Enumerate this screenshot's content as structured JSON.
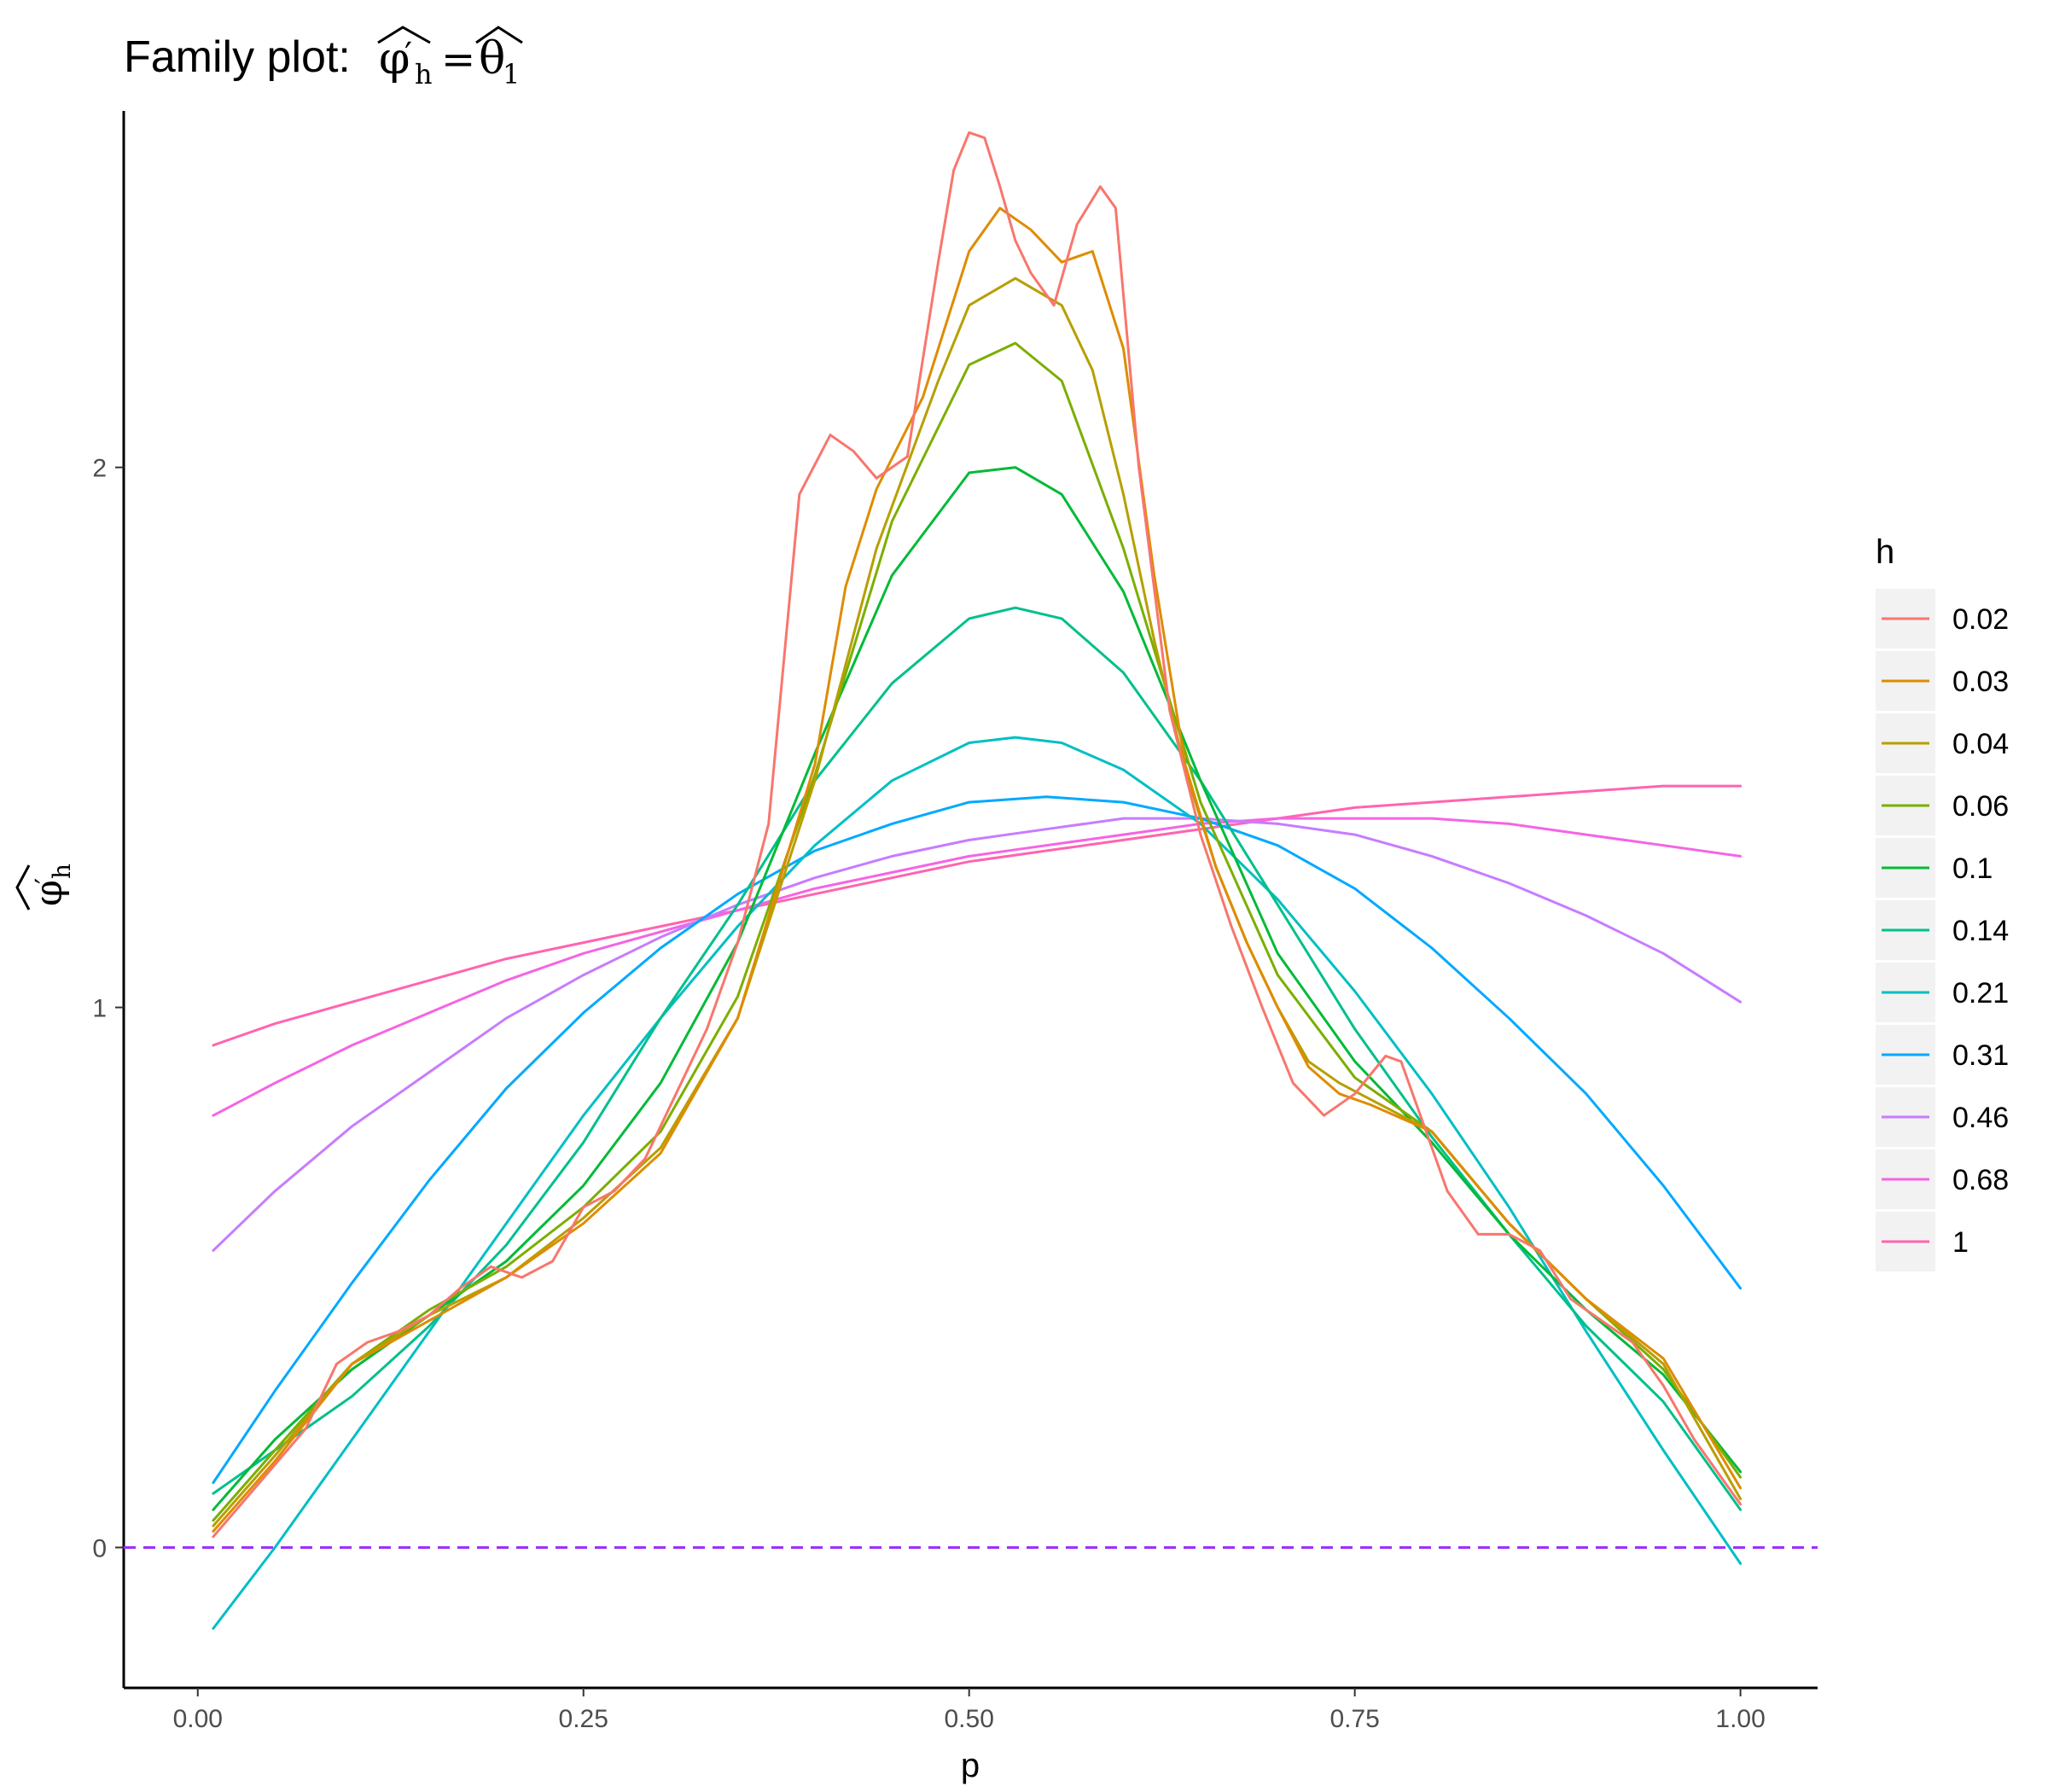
{
  "chart_data": {
    "type": "line",
    "title": {
      "prefix": "Family plot:",
      "phi": "φ",
      "prime": "′",
      "subscript_h": "h",
      "equals": "=",
      "theta": "θ",
      "subscript_1": "1"
    },
    "xlabel": "p",
    "ylabel": {
      "phi": "φ",
      "prime": "′",
      "subscript": "h"
    },
    "xlim": [
      -0.048,
      1.05
    ],
    "ylim": [
      -0.26,
      2.66
    ],
    "x_ticks": [
      0.0,
      0.25,
      0.5,
      0.75,
      1.0
    ],
    "x_tick_labels": [
      "0.00",
      "0.25",
      "0.50",
      "0.75",
      "1.00"
    ],
    "y_ticks": [
      0,
      1,
      2
    ],
    "y_tick_labels": [
      "0",
      "1",
      "2"
    ],
    "reference_line": {
      "y": 0,
      "style": "dashed",
      "color": "#9b30ff"
    },
    "legend": {
      "title": "h",
      "position": "right"
    },
    "series": [
      {
        "name": "0.02",
        "color": "#F8766D",
        "x": [
          0.01,
          0.04,
          0.07,
          0.09,
          0.11,
          0.13,
          0.15,
          0.17,
          0.19,
          0.21,
          0.23,
          0.25,
          0.27,
          0.29,
          0.31,
          0.33,
          0.35,
          0.37,
          0.39,
          0.41,
          0.425,
          0.44,
          0.46,
          0.48,
          0.49,
          0.5,
          0.51,
          0.52,
          0.53,
          0.54,
          0.555,
          0.57,
          0.585,
          0.595,
          0.61,
          0.63,
          0.65,
          0.67,
          0.69,
          0.71,
          0.73,
          0.75,
          0.77,
          0.78,
          0.79,
          0.81,
          0.83,
          0.85,
          0.87,
          0.89,
          0.91,
          0.93,
          0.95,
          0.97,
          1.0
        ],
        "y": [
          0.02,
          0.12,
          0.22,
          0.34,
          0.38,
          0.4,
          0.43,
          0.48,
          0.52,
          0.5,
          0.53,
          0.63,
          0.66,
          0.72,
          0.84,
          0.96,
          1.12,
          1.34,
          1.95,
          2.06,
          2.03,
          1.98,
          2.02,
          2.38,
          2.55,
          2.62,
          2.61,
          2.52,
          2.42,
          2.36,
          2.3,
          2.45,
          2.52,
          2.48,
          2.0,
          1.55,
          1.32,
          1.15,
          1.0,
          0.86,
          0.8,
          0.84,
          0.91,
          0.9,
          0.82,
          0.66,
          0.58,
          0.58,
          0.55,
          0.46,
          0.42,
          0.38,
          0.3,
          0.2,
          0.08
        ]
      },
      {
        "name": "0.03",
        "color": "#DE8C00",
        "x": [
          0.01,
          0.05,
          0.1,
          0.15,
          0.2,
          0.25,
          0.3,
          0.35,
          0.4,
          0.42,
          0.44,
          0.47,
          0.5,
          0.52,
          0.54,
          0.56,
          0.58,
          0.6,
          0.62,
          0.64,
          0.66,
          0.68,
          0.7,
          0.72,
          0.74,
          0.76,
          0.8,
          0.85,
          0.9,
          0.95,
          1.0
        ],
        "y": [
          0.03,
          0.16,
          0.34,
          0.42,
          0.5,
          0.6,
          0.73,
          0.98,
          1.45,
          1.78,
          1.96,
          2.13,
          2.4,
          2.48,
          2.44,
          2.38,
          2.4,
          2.22,
          1.8,
          1.45,
          1.26,
          1.12,
          1.0,
          0.89,
          0.84,
          0.82,
          0.77,
          0.6,
          0.46,
          0.35,
          0.11
        ]
      },
      {
        "name": "0.04",
        "color": "#B79F00",
        "x": [
          0.01,
          0.05,
          0.1,
          0.15,
          0.2,
          0.25,
          0.3,
          0.35,
          0.4,
          0.44,
          0.48,
          0.5,
          0.53,
          0.56,
          0.58,
          0.6,
          0.62,
          0.64,
          0.66,
          0.68,
          0.7,
          0.72,
          0.74,
          0.76,
          0.8,
          0.85,
          0.9,
          0.95,
          1.0
        ],
        "y": [
          0.04,
          0.17,
          0.34,
          0.43,
          0.5,
          0.61,
          0.74,
          0.98,
          1.42,
          1.85,
          2.16,
          2.3,
          2.35,
          2.3,
          2.18,
          1.95,
          1.68,
          1.44,
          1.26,
          1.12,
          1.0,
          0.9,
          0.86,
          0.83,
          0.77,
          0.6,
          0.46,
          0.34,
          0.09
        ]
      },
      {
        "name": "0.06",
        "color": "#7CAE00",
        "x": [
          0.01,
          0.05,
          0.1,
          0.15,
          0.2,
          0.25,
          0.3,
          0.35,
          0.4,
          0.45,
          0.5,
          0.53,
          0.56,
          0.6,
          0.65,
          0.7,
          0.75,
          0.8,
          0.85,
          0.9,
          0.95,
          1.0
        ],
        "y": [
          0.05,
          0.18,
          0.34,
          0.44,
          0.52,
          0.63,
          0.77,
          1.02,
          1.43,
          1.9,
          2.19,
          2.23,
          2.16,
          1.85,
          1.38,
          1.06,
          0.87,
          0.77,
          0.6,
          0.46,
          0.33,
          0.13
        ]
      },
      {
        "name": "0.1",
        "color": "#00BA38",
        "x": [
          0.01,
          0.05,
          0.1,
          0.15,
          0.2,
          0.25,
          0.3,
          0.35,
          0.4,
          0.45,
          0.5,
          0.53,
          0.56,
          0.6,
          0.65,
          0.7,
          0.75,
          0.8,
          0.85,
          0.9,
          0.95,
          1.0
        ],
        "y": [
          0.07,
          0.2,
          0.33,
          0.43,
          0.53,
          0.67,
          0.86,
          1.12,
          1.47,
          1.8,
          1.99,
          2.0,
          1.95,
          1.77,
          1.42,
          1.1,
          0.9,
          0.75,
          0.58,
          0.44,
          0.32,
          0.14
        ]
      },
      {
        "name": "0.14",
        "color": "#00C08B",
        "x": [
          0.01,
          0.05,
          0.1,
          0.15,
          0.2,
          0.25,
          0.3,
          0.35,
          0.4,
          0.45,
          0.5,
          0.53,
          0.56,
          0.6,
          0.65,
          0.7,
          0.75,
          0.8,
          0.85,
          0.9,
          0.95,
          1.0
        ],
        "y": [
          0.1,
          0.18,
          0.28,
          0.41,
          0.56,
          0.75,
          0.98,
          1.19,
          1.42,
          1.6,
          1.72,
          1.74,
          1.72,
          1.62,
          1.42,
          1.19,
          0.96,
          0.76,
          0.58,
          0.41,
          0.27,
          0.07
        ]
      },
      {
        "name": "0.21",
        "color": "#00BFC4",
        "x": [
          0.01,
          0.05,
          0.1,
          0.15,
          0.2,
          0.25,
          0.3,
          0.35,
          0.4,
          0.45,
          0.5,
          0.53,
          0.56,
          0.6,
          0.65,
          0.7,
          0.75,
          0.8,
          0.85,
          0.9,
          0.95,
          1.0
        ],
        "y": [
          -0.15,
          0.0,
          0.2,
          0.4,
          0.6,
          0.8,
          0.98,
          1.15,
          1.3,
          1.42,
          1.49,
          1.5,
          1.49,
          1.44,
          1.34,
          1.2,
          1.03,
          0.84,
          0.63,
          0.4,
          0.18,
          -0.03
        ]
      },
      {
        "name": "0.31",
        "color": "#00A9FF",
        "x": [
          0.01,
          0.05,
          0.1,
          0.15,
          0.2,
          0.25,
          0.3,
          0.35,
          0.4,
          0.45,
          0.5,
          0.55,
          0.6,
          0.65,
          0.7,
          0.75,
          0.8,
          0.85,
          0.9,
          0.95,
          1.0
        ],
        "y": [
          0.12,
          0.29,
          0.49,
          0.68,
          0.85,
          0.99,
          1.11,
          1.21,
          1.29,
          1.34,
          1.38,
          1.39,
          1.38,
          1.35,
          1.3,
          1.22,
          1.11,
          0.98,
          0.84,
          0.67,
          0.48
        ]
      },
      {
        "name": "0.46",
        "color": "#C77CFF",
        "x": [
          0.01,
          0.05,
          0.1,
          0.15,
          0.2,
          0.25,
          0.3,
          0.35,
          0.4,
          0.45,
          0.5,
          0.55,
          0.6,
          0.65,
          0.7,
          0.75,
          0.8,
          0.85,
          0.9,
          0.95,
          1.0
        ],
        "y": [
          0.55,
          0.66,
          0.78,
          0.88,
          0.98,
          1.06,
          1.13,
          1.19,
          1.24,
          1.28,
          1.31,
          1.33,
          1.35,
          1.35,
          1.34,
          1.32,
          1.28,
          1.23,
          1.17,
          1.1,
          1.01
        ]
      },
      {
        "name": "0.68",
        "color": "#F564E3",
        "x": [
          0.01,
          0.05,
          0.1,
          0.15,
          0.2,
          0.25,
          0.3,
          0.35,
          0.4,
          0.45,
          0.5,
          0.55,
          0.6,
          0.65,
          0.7,
          0.75,
          0.8,
          0.85,
          0.9,
          0.95,
          1.0
        ],
        "y": [
          0.8,
          0.86,
          0.93,
          0.99,
          1.05,
          1.1,
          1.14,
          1.18,
          1.22,
          1.25,
          1.28,
          1.3,
          1.32,
          1.34,
          1.35,
          1.35,
          1.35,
          1.34,
          1.32,
          1.3,
          1.28
        ]
      },
      {
        "name": "1",
        "color": "#FF64B0",
        "x": [
          0.01,
          0.05,
          0.1,
          0.15,
          0.2,
          0.25,
          0.3,
          0.35,
          0.4,
          0.45,
          0.5,
          0.55,
          0.6,
          0.65,
          0.7,
          0.75,
          0.8,
          0.85,
          0.9,
          0.95,
          1.0
        ],
        "y": [
          0.93,
          0.97,
          1.01,
          1.05,
          1.09,
          1.12,
          1.15,
          1.18,
          1.21,
          1.24,
          1.27,
          1.29,
          1.31,
          1.33,
          1.35,
          1.37,
          1.38,
          1.39,
          1.4,
          1.41,
          1.41
        ]
      }
    ]
  }
}
